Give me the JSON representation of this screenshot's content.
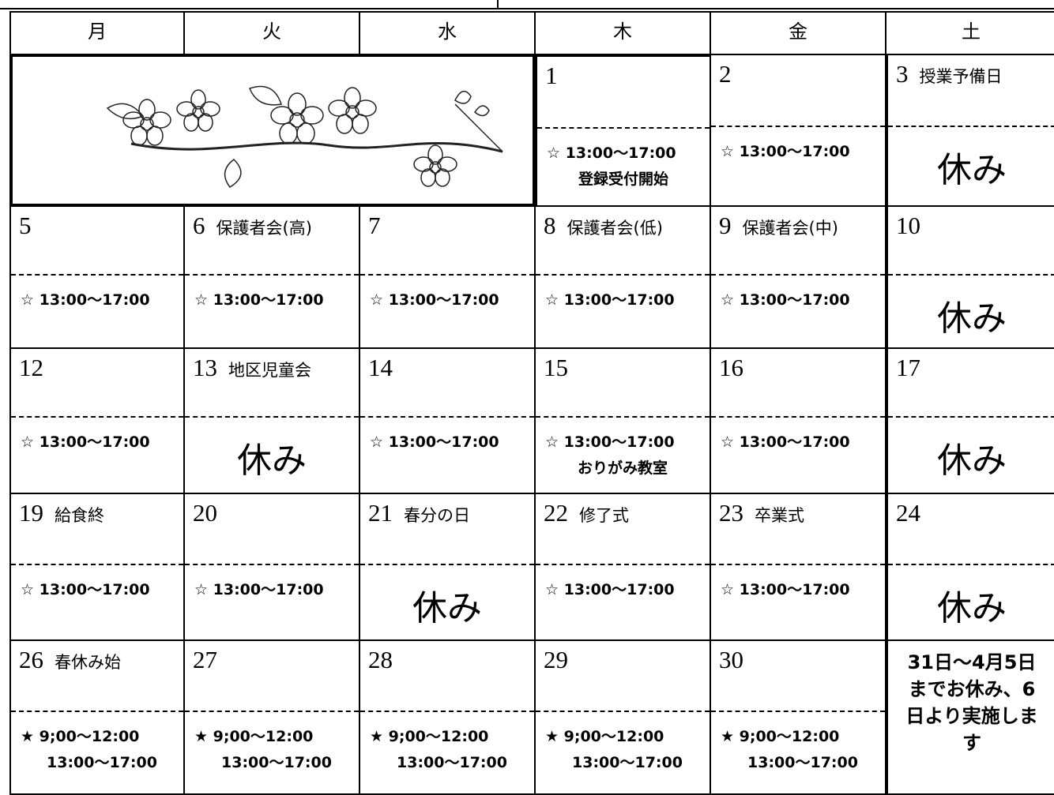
{
  "weekdays": [
    "月",
    "火",
    "水",
    "木",
    "金",
    "土"
  ],
  "weeks": [
    [
      {
        "day": "1",
        "times": [
          "☆ 13:00～17:00"
        ],
        "note": "登録受付開始"
      },
      {
        "day": "2",
        "times": [
          "☆ 13:00～17:00"
        ]
      },
      {
        "day": "3",
        "event": "授業予備日",
        "closed": "休み"
      }
    ],
    [
      {
        "day": "5",
        "times": [
          "☆ 13:00～17:00"
        ]
      },
      {
        "day": "6",
        "event": "保護者会(高)",
        "times": [
          "☆ 13:00～17:00"
        ]
      },
      {
        "day": "7",
        "times": [
          "☆ 13:00～17:00"
        ]
      },
      {
        "day": "8",
        "event": "保護者会(低)",
        "times": [
          "☆ 13:00～17:00"
        ]
      },
      {
        "day": "9",
        "event": "保護者会(中)",
        "times": [
          "☆ 13:00～17:00"
        ]
      },
      {
        "day": "10",
        "closed": "休み"
      }
    ],
    [
      {
        "day": "12",
        "times": [
          "☆ 13:00～17:00"
        ]
      },
      {
        "day": "13",
        "event": "地区児童会",
        "closed": "休み"
      },
      {
        "day": "14",
        "times": [
          "☆ 13:00～17:00"
        ]
      },
      {
        "day": "15",
        "times": [
          "☆ 13:00～17:00"
        ],
        "note": "おりがみ教室"
      },
      {
        "day": "16",
        "times": [
          "☆ 13:00～17:00"
        ]
      },
      {
        "day": "17",
        "closed": "休み"
      }
    ],
    [
      {
        "day": "19",
        "event": "給食終",
        "times": [
          "☆ 13:00～17:00"
        ]
      },
      {
        "day": "20",
        "times": [
          "☆ 13:00～17:00"
        ]
      },
      {
        "day": "21",
        "event": "春分の日",
        "closed": "休み"
      },
      {
        "day": "22",
        "event": "修了式",
        "times": [
          "☆ 13:00～17:00"
        ]
      },
      {
        "day": "23",
        "event": "卒業式",
        "times": [
          "☆ 13:00～17:00"
        ]
      },
      {
        "day": "24",
        "closed": "休み"
      }
    ],
    [
      {
        "day": "26",
        "event": "春休み始",
        "times": [
          "★ 9;00～12:00",
          "13:00～17:00"
        ]
      },
      {
        "day": "27",
        "times": [
          "★ 9;00～12:00",
          "13:00～17:00"
        ]
      },
      {
        "day": "28",
        "times": [
          "★ 9;00～12:00",
          "13:00～17:00"
        ]
      },
      {
        "day": "29",
        "times": [
          "★ 9;00～12:00",
          "13:00～17:00"
        ]
      },
      {
        "day": "30",
        "times": [
          "★ 9;00～12:00",
          "13:00～17:00"
        ]
      },
      {
        "notice": "31日～4月5日までお休み、6日より実施します"
      }
    ]
  ]
}
